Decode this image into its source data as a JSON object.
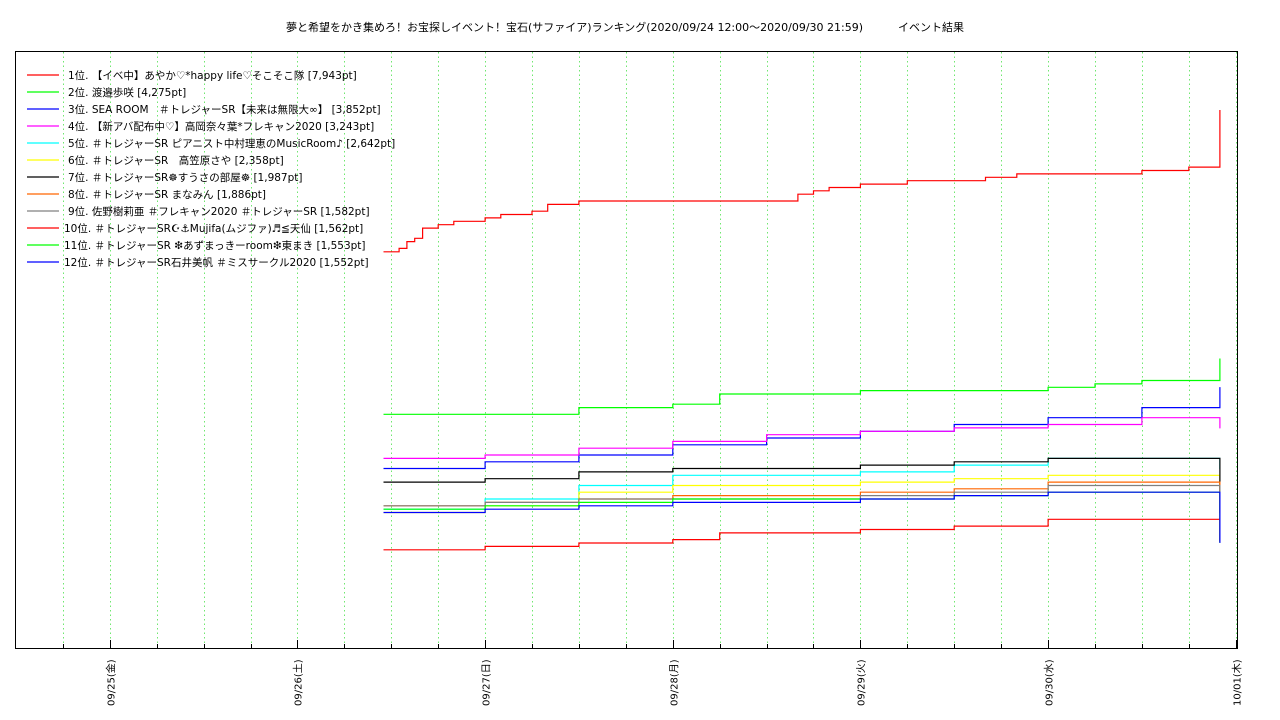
{
  "chart_data": {
    "type": "line",
    "title": "夢と希望をかき集めろ！お宝探しイベント！宝石(サファイア)ランキング(2020/09/24 12:00～2020/09/30 21:59)          イベント結果",
    "xlabel": "",
    "ylabel": "",
    "x_ticks": [
      "09/25(金)",
      "09/26(土)",
      "09/27(日)",
      "09/28(月)",
      "09/29(火)",
      "09/30(水)",
      "10/01(木)"
    ],
    "x_range": [
      "2020/09/24 12:00",
      "2020/10/01 00:10"
    ],
    "ylim": [
      0,
      8800
    ],
    "grid": "vertical-dotted",
    "legend_position": "top-left",
    "series": [
      {
        "name": "1位. 【イベ中】あやか♡*happy life♡そこそこ隊 [7,943pt]",
        "color": "#ff0000",
        "x": [
          "09/26 11:00",
          "09/26 12:00",
          "09/26 13:00",
          "09/26 14:00",
          "09/26 15:00",
          "09/26 16:00",
          "09/26 18:00",
          "09/26 20:00",
          "09/27 00:00",
          "09/27 02:00",
          "09/27 06:00",
          "09/27 08:00",
          "09/27 10:00",
          "09/27 12:00",
          "09/28 00:00",
          "09/28 14:00",
          "09/28 16:00",
          "09/28 18:00",
          "09/28 20:00",
          "09/29 00:00",
          "09/29 06:00",
          "09/29 12:00",
          "09/29 16:00",
          "09/29 18:00",
          "09/29 20:00",
          "09/30 00:00",
          "09/30 06:00",
          "09/30 12:00",
          "09/30 18:00",
          "09/30 21:59"
        ],
        "y": [
          5850,
          5850,
          5900,
          6000,
          6050,
          6200,
          6250,
          6300,
          6350,
          6400,
          6450,
          6550,
          6550,
          6600,
          6600,
          6600,
          6700,
          6750,
          6800,
          6850,
          6900,
          6900,
          6950,
          6950,
          7000,
          7000,
          7000,
          7050,
          7100,
          7943
        ]
      },
      {
        "name": "2位. 渡邉歩咲 [4,275pt]",
        "color": "#00ff00",
        "x": [
          "09/26 11:00",
          "09/27 00:00",
          "09/27 12:00",
          "09/28 00:00",
          "09/28 04:00",
          "09/28 06:00",
          "09/29 00:00",
          "09/30 00:00",
          "09/30 06:00",
          "09/30 12:00",
          "09/30 21:59"
        ],
        "y": [
          3450,
          3450,
          3550,
          3600,
          3600,
          3750,
          3800,
          3850,
          3900,
          3950,
          4275
        ]
      },
      {
        "name": "3位. SEA ROOM　＃トレジャーSR【未来は無限大∞】 [3,852pt]",
        "color": "#0000ff",
        "x": [
          "09/26 11:00",
          "09/27 00:00",
          "09/27 12:00",
          "09/28 00:00",
          "09/28 12:00",
          "09/29 00:00",
          "09/29 12:00",
          "09/30 00:00",
          "09/30 12:00",
          "09/30 21:59"
        ],
        "y": [
          2650,
          2750,
          2850,
          3000,
          3100,
          3200,
          3300,
          3400,
          3550,
          3852
        ]
      },
      {
        "name": "4位. 【新アバ配布中♡】高岡奈々葉*フレキャン2020 [3,243pt]",
        "color": "#ff00ff",
        "x": [
          "09/26 11:00",
          "09/27 00:00",
          "09/27 12:00",
          "09/28 00:00",
          "09/28 12:00",
          "09/29 00:00",
          "09/29 12:00",
          "09/30 00:00",
          "09/30 12:00",
          "09/30 21:59"
        ],
        "y": [
          2800,
          2850,
          2950,
          3050,
          3150,
          3200,
          3250,
          3300,
          3400,
          3243
        ]
      },
      {
        "name": "5位. ＃トレジャーSR ピアニスト中村理恵のMusicRoom♪ [2,642pt]",
        "color": "#00ffff",
        "x": [
          "09/26 11:00",
          "09/27 00:00",
          "09/27 12:00",
          "09/28 00:00",
          "09/29 00:00",
          "09/29 12:00",
          "09/30 00:00",
          "09/30 21:59"
        ],
        "y": [
          2050,
          2200,
          2400,
          2550,
          2600,
          2700,
          2800,
          2642
        ]
      },
      {
        "name": "6位. ＃トレジャーSR　高笠原さや [2,358pt]",
        "color": "#ffff00",
        "x": [
          "09/26 11:00",
          "09/27 00:00",
          "09/27 12:00",
          "09/28 00:00",
          "09/29 00:00",
          "09/29 12:00",
          "09/30 00:00",
          "09/30 21:59"
        ],
        "y": [
          2000,
          2100,
          2300,
          2400,
          2450,
          2500,
          2550,
          2358
        ]
      },
      {
        "name": "7位. ＃トレジャーSR☸すうさの部屋☸ [1,987pt]",
        "color": "#000000",
        "x": [
          "09/26 11:00",
          "09/27 00:00",
          "09/27 12:00",
          "09/28 00:00",
          "09/29 00:00",
          "09/29 12:00",
          "09/30 00:00",
          "09/30 21:59"
        ],
        "y": [
          2450,
          2500,
          2600,
          2650,
          2700,
          2750,
          2800,
          1987
        ]
      },
      {
        "name": "8位. ＃トレジャーSR まなみん [1,886pt]",
        "color": "#ff6600",
        "x": [
          "09/26 11:00",
          "09/27 00:00",
          "09/27 12:00",
          "09/28 00:00",
          "09/29 00:00",
          "09/29 12:00",
          "09/30 00:00",
          "09/30 21:59"
        ],
        "y": [
          2100,
          2150,
          2200,
          2250,
          2300,
          2350,
          2450,
          1886
        ]
      },
      {
        "name": "9位. 佐野樹莉亜 ＃フレキャン2020 ＃トレジャーSR [1,582pt]",
        "color": "#808080",
        "x": [
          "09/26 11:00",
          "09/27 00:00",
          "09/27 12:00",
          "09/28 00:00",
          "09/29 00:00",
          "09/29 12:00",
          "09/30 00:00",
          "09/30 21:59"
        ],
        "y": [
          2100,
          2150,
          2200,
          2200,
          2250,
          2300,
          2400,
          1582
        ]
      },
      {
        "name": "10位. ＃トレジャーSR☪⚓Mujifa(ムジファ)♬≦天仙 [1,562pt]",
        "color": "#ff0000",
        "x": [
          "09/26 11:00",
          "09/27 00:00",
          "09/27 12:00",
          "09/28 00:00",
          "09/28 06:00",
          "09/29 00:00",
          "09/29 12:00",
          "09/30 00:00",
          "09/30 21:59"
        ],
        "y": [
          1450,
          1500,
          1550,
          1600,
          1700,
          1750,
          1800,
          1900,
          1562
        ]
      },
      {
        "name": "11位. ＃トレジャーSR ❇あずまっきーroom❇東まき [1,553pt]",
        "color": "#00ff00",
        "x": [
          "09/26 11:00",
          "09/27 00:00",
          "09/27 12:00",
          "09/28 00:00",
          "09/29 00:00",
          "09/29 12:00",
          "09/30 00:00",
          "09/30 21:59"
        ],
        "y": [
          2050,
          2100,
          2150,
          2200,
          2200,
          2250,
          2300,
          1553
        ]
      },
      {
        "name": "12位. ＃トレジャーSR石井美帆 ＃ミスサークル2020 [1,552pt]",
        "color": "#0000ff",
        "x": [
          "09/26 11:00",
          "09/27 00:00",
          "09/27 12:00",
          "09/28 00:00",
          "09/29 00:00",
          "09/29 12:00",
          "09/30 00:00",
          "09/30 21:59"
        ],
        "y": [
          2000,
          2050,
          2100,
          2150,
          2200,
          2250,
          2300,
          1552
        ]
      }
    ]
  }
}
